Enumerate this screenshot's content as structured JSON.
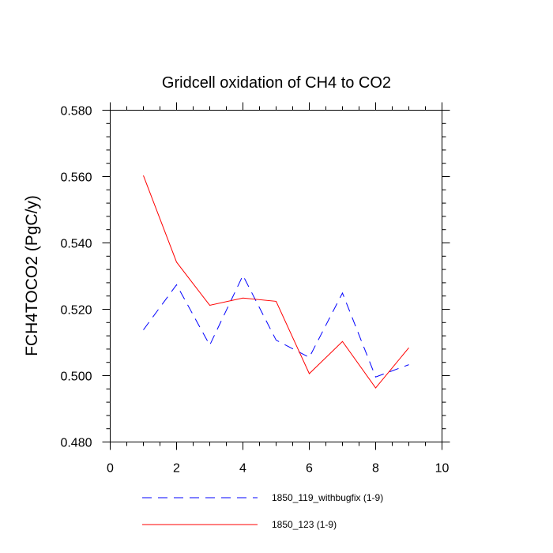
{
  "chart_data": {
    "type": "line",
    "title": "Gridcell oxidation of CH4 to CO2",
    "xlabel": "",
    "ylabel": "FCH4TOCO2  (PgC/y)",
    "xlim": [
      0,
      10
    ],
    "ylim": [
      0.48,
      0.58
    ],
    "xticks": [
      0,
      2,
      4,
      6,
      8,
      10
    ],
    "yticks": [
      0.48,
      0.5,
      0.52,
      0.54,
      0.56,
      0.58
    ],
    "xtick_labels": [
      "0",
      "2",
      "4",
      "6",
      "8",
      "10"
    ],
    "ytick_labels": [
      "0.480",
      "0.500",
      "0.520",
      "0.540",
      "0.560",
      "0.580"
    ],
    "grid": false,
    "legend_position": "bottom",
    "series": [
      {
        "name": "1850_119_withbugfix (1-9)",
        "color": "#0000ff",
        "style": "dashed",
        "x": [
          1,
          2,
          3,
          4,
          5,
          6,
          7,
          8,
          9
        ],
        "values": [
          0.5138,
          0.5274,
          0.5092,
          0.5302,
          0.5107,
          0.5055,
          0.5249,
          0.4996,
          0.5033
        ]
      },
      {
        "name": "1850_123 (1-9)",
        "color": "#ff0000",
        "style": "solid",
        "x": [
          1,
          2,
          3,
          4,
          5,
          6,
          7,
          8,
          9
        ],
        "values": [
          0.5603,
          0.5342,
          0.5212,
          0.5234,
          0.5224,
          0.5006,
          0.5103,
          0.4963,
          0.5084
        ]
      }
    ]
  }
}
